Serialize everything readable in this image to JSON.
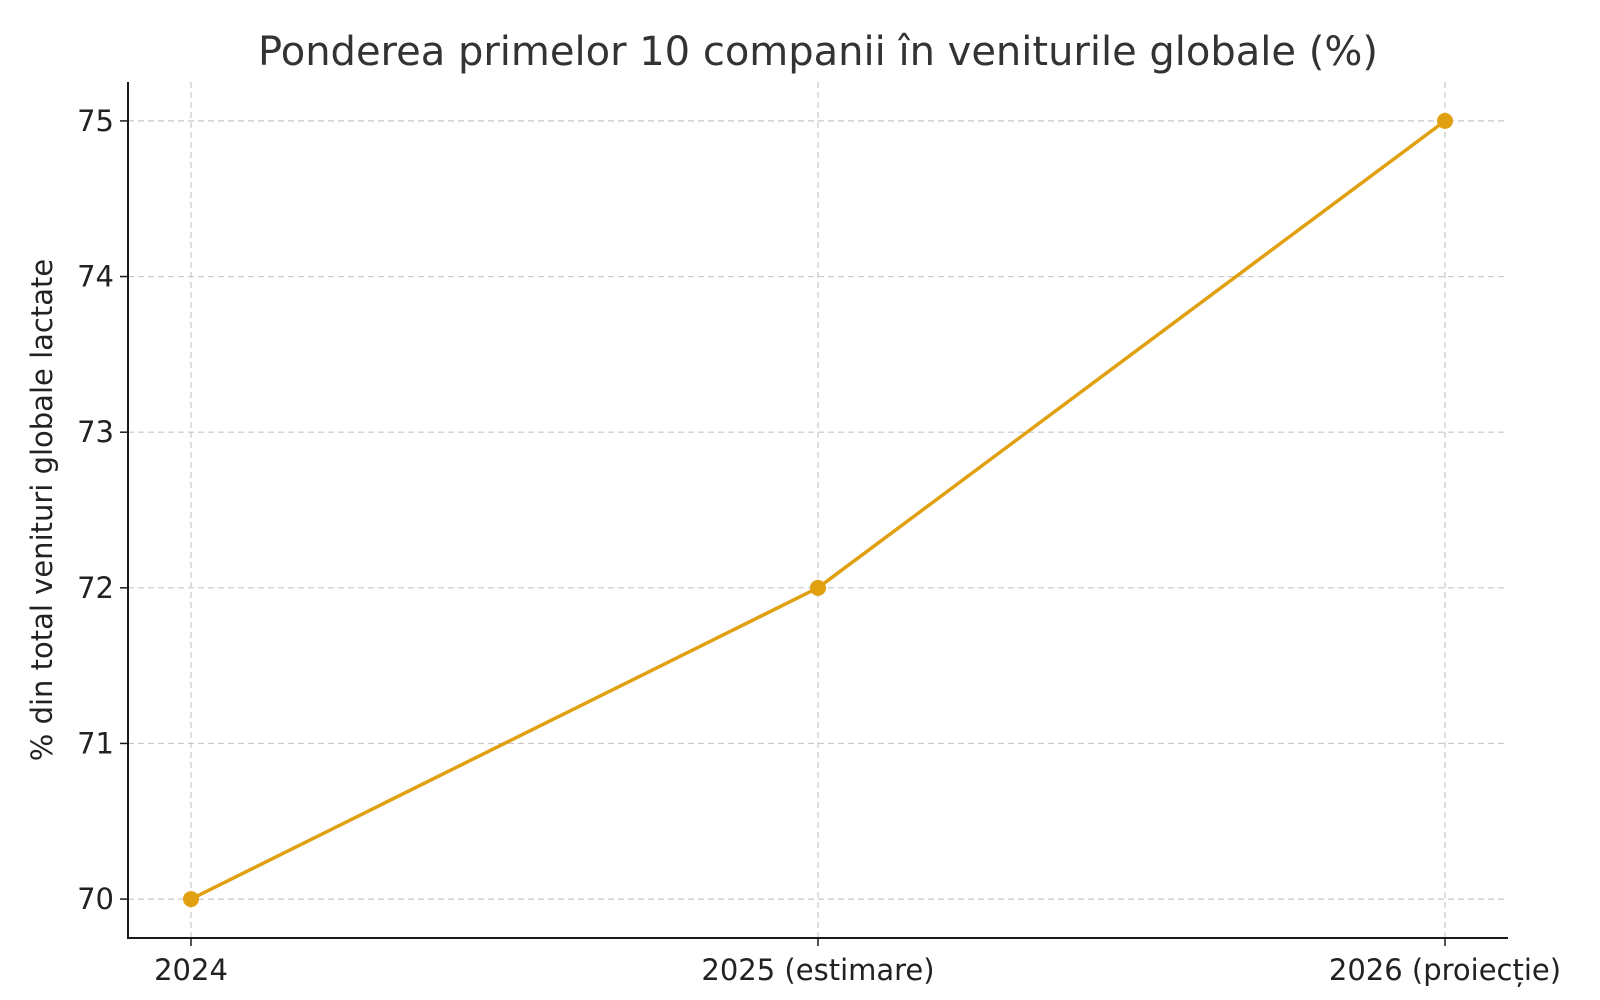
{
  "chart_data": {
    "type": "line",
    "title": "Ponderea primelor 10 companii în veniturile globale (%)",
    "xlabel": "",
    "ylabel": "% din total venituri globale lactate",
    "categories": [
      "2024",
      "2025 (estimare)",
      "2026 (proiecție)"
    ],
    "series": [
      {
        "values": [
          70,
          72,
          75
        ],
        "color": "#e0a010",
        "marker": "circle"
      }
    ],
    "yticks": [
      70,
      71,
      72,
      73,
      74,
      75
    ],
    "ylim": [
      69.75,
      75.25
    ],
    "grid": true,
    "legend": "none"
  }
}
